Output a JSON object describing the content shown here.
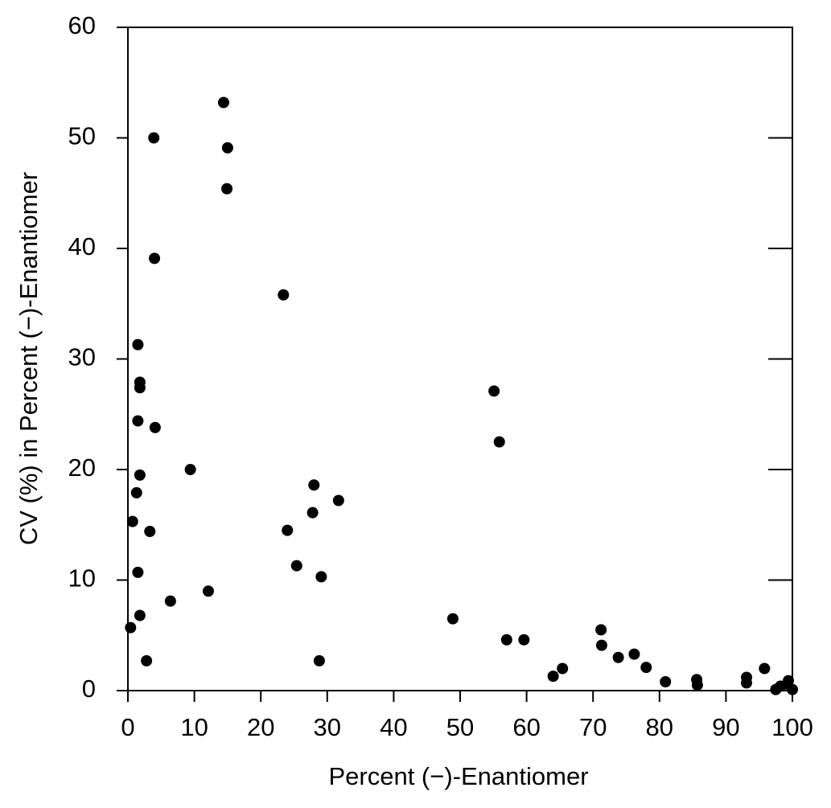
{
  "chart_data": {
    "type": "scatter",
    "xlabel": "Percent (−)-Enantiomer",
    "ylabel": "CV (%) in Percent (−)-Enantiomer",
    "color": "#000000",
    "xlim": [
      0,
      100
    ],
    "ylim": [
      0,
      60
    ],
    "xticks": [
      0,
      10,
      20,
      30,
      40,
      50,
      60,
      70,
      80,
      90,
      100
    ],
    "yticks": [
      0,
      10,
      20,
      30,
      40,
      50,
      60
    ],
    "x": [
      0.4,
      0.7,
      1.3,
      1.5,
      1.5,
      1.5,
      1.8,
      1.8,
      1.8,
      1.8,
      2.8,
      3.3,
      3.9,
      4.0,
      4.1,
      6.4,
      9.4,
      12.1,
      14.4,
      15.0,
      14.9,
      23.4,
      24.0,
      25.4,
      28.0,
      27.8,
      28.8,
      29.1,
      31.7,
      48.9,
      55.1,
      55.9,
      57.0,
      59.6,
      64.0,
      65.4,
      71.2,
      71.3,
      73.8,
      76.2,
      78.0,
      80.9,
      85.6,
      85.7,
      93.1,
      93.1,
      95.8,
      97.5,
      98.2,
      99.2,
      99.4,
      100
    ],
    "values": [
      5.7,
      15.3,
      17.9,
      31.3,
      24.4,
      10.7,
      27.9,
      27.4,
      19.5,
      6.8,
      2.7,
      14.4,
      50.0,
      39.1,
      23.8,
      8.1,
      20.0,
      9.0,
      53.2,
      49.1,
      45.4,
      35.8,
      14.5,
      11.3,
      18.6,
      16.1,
      2.7,
      10.3,
      17.2,
      6.5,
      27.1,
      22.5,
      4.6,
      4.6,
      1.3,
      2.0,
      5.5,
      4.1,
      3.0,
      3.3,
      2.1,
      0.8,
      1.0,
      0.5,
      1.2,
      0.7,
      2.0,
      0.1,
      0.4,
      0.6,
      0.9,
      0.1
    ]
  }
}
